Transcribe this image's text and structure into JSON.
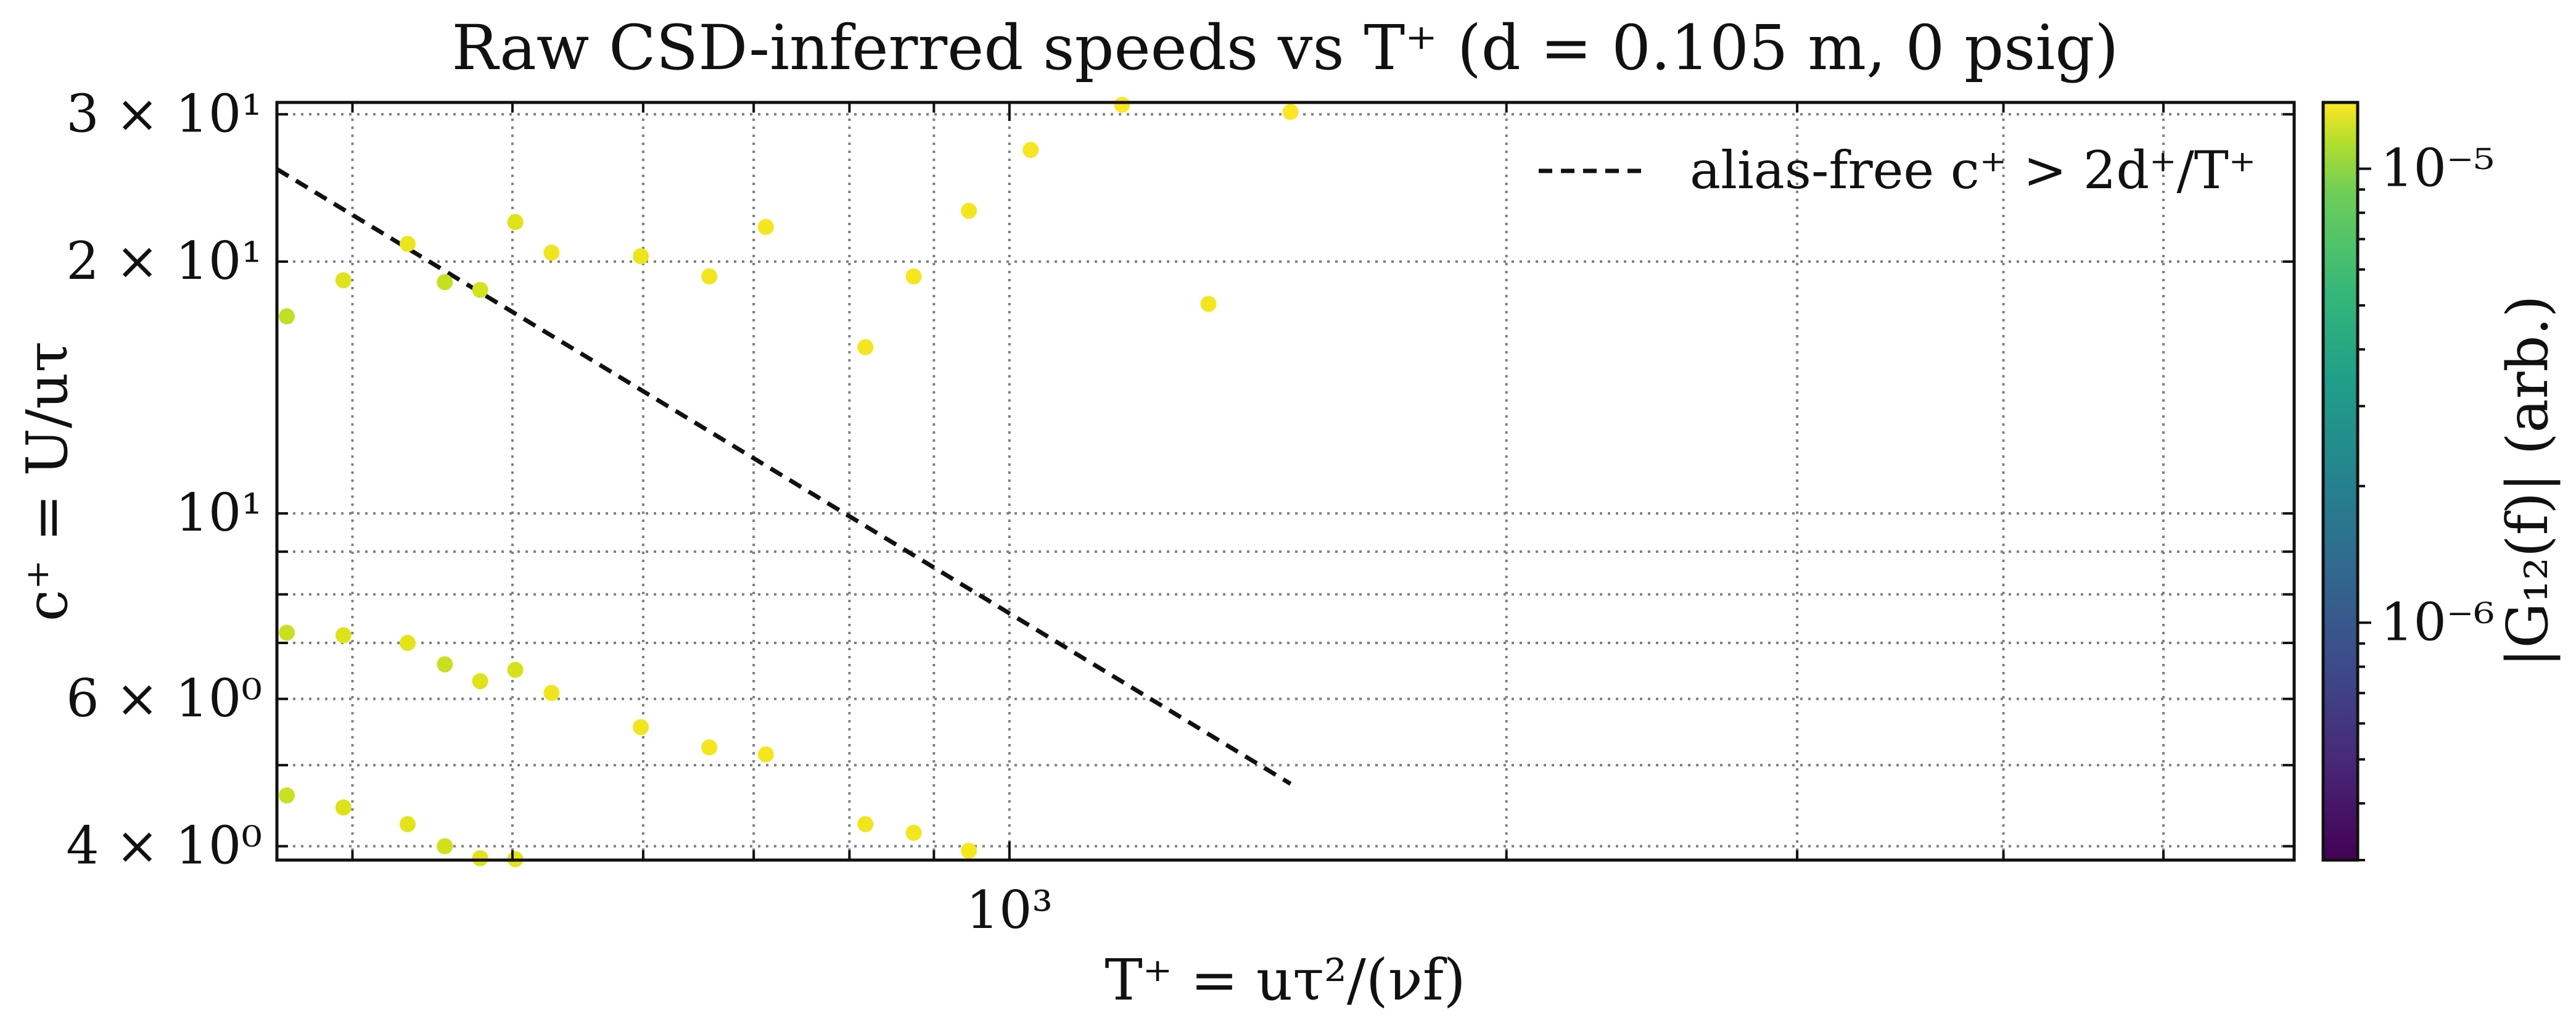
{
  "chart_data": {
    "type": "scatter",
    "title": "Raw CSD-inferred speeds vs T⁺ (d = 0.105 m, 0 psig)",
    "xlabel": "T⁺ = uτ²/(νf)",
    "ylabel": "c⁺ = U/uτ",
    "xscale": "log",
    "yscale": "log",
    "xlim": [
      360,
      6000
    ],
    "ylim": [
      3.85,
      31
    ],
    "x_tick_labels": [
      {
        "value": 1000,
        "text": "10³"
      }
    ],
    "y_tick_labels": [
      {
        "value": 4,
        "text": "4 × 10⁰"
      },
      {
        "value": 6,
        "text": "6 × 10⁰"
      },
      {
        "value": 10,
        "text": "10¹"
      },
      {
        "value": 20,
        "text": "2 × 10¹"
      },
      {
        "value": 30,
        "text": "3 × 10¹"
      }
    ],
    "grid": true,
    "legend": {
      "position": "top-right",
      "entries": [
        {
          "label": "alias-free c⁺ > 2d⁺/T⁺",
          "style": "dashed",
          "color": "#111111"
        }
      ]
    },
    "reference_line": {
      "name": "alias-free c⁺ > 2d⁺/T⁺",
      "x": [
        360,
        1480
      ],
      "y": [
        25.8,
        4.75
      ]
    },
    "colorbar": {
      "label": "|G₁₂(f)| (arb.)",
      "scale": "log",
      "range": [
        3e-07,
        1.4e-05
      ],
      "colormap": "viridis",
      "tick_labels": [
        {
          "value": 1e-05,
          "text": "10⁻⁵"
        },
        {
          "value": 1e-06,
          "text": "10⁻⁶"
        }
      ]
    },
    "points": [
      {
        "x": 365,
        "y": 17.2,
        "color": "#c2df23"
      },
      {
        "x": 395,
        "y": 19.0,
        "color": "#e0e21e"
      },
      {
        "x": 432,
        "y": 21.0,
        "color": "#ede51b"
      },
      {
        "x": 455,
        "y": 18.9,
        "color": "#c5e021"
      },
      {
        "x": 478,
        "y": 18.5,
        "color": "#d2e21b"
      },
      {
        "x": 502,
        "y": 22.3,
        "color": "#dfe318"
      },
      {
        "x": 528,
        "y": 20.5,
        "color": "#efe51c"
      },
      {
        "x": 598,
        "y": 20.3,
        "color": "#ece51b"
      },
      {
        "x": 658,
        "y": 19.2,
        "color": "#f1e51d"
      },
      {
        "x": 712,
        "y": 22.0,
        "color": "#f4e61e"
      },
      {
        "x": 818,
        "y": 15.8,
        "color": "#f3e61d"
      },
      {
        "x": 875,
        "y": 19.2,
        "color": "#f5e61e"
      },
      {
        "x": 945,
        "y": 23.0,
        "color": "#f4e61e"
      },
      {
        "x": 1030,
        "y": 27.2,
        "color": "#f5e61f"
      },
      {
        "x": 1170,
        "y": 30.8,
        "color": "#fde725"
      },
      {
        "x": 1320,
        "y": 17.8,
        "color": "#f4e61e"
      },
      {
        "x": 1480,
        "y": 30.2,
        "color": "#fbe723"
      },
      {
        "x": 365,
        "y": 7.2,
        "color": "#c8e020"
      },
      {
        "x": 395,
        "y": 7.15,
        "color": "#dde318"
      },
      {
        "x": 432,
        "y": 7.0,
        "color": "#e2e418"
      },
      {
        "x": 455,
        "y": 6.6,
        "color": "#c8e020"
      },
      {
        "x": 478,
        "y": 6.3,
        "color": "#dfe318"
      },
      {
        "x": 502,
        "y": 6.5,
        "color": "#d5e21a"
      },
      {
        "x": 528,
        "y": 6.1,
        "color": "#efe51c"
      },
      {
        "x": 598,
        "y": 5.55,
        "color": "#f1e51d"
      },
      {
        "x": 658,
        "y": 5.25,
        "color": "#f3e61d"
      },
      {
        "x": 712,
        "y": 5.15,
        "color": "#f4e61e"
      },
      {
        "x": 365,
        "y": 4.6,
        "color": "#c8e020"
      },
      {
        "x": 395,
        "y": 4.45,
        "color": "#dde318"
      },
      {
        "x": 432,
        "y": 4.25,
        "color": "#e2e418"
      },
      {
        "x": 455,
        "y": 4.0,
        "color": "#d0e11c"
      },
      {
        "x": 478,
        "y": 3.87,
        "color": "#e0e318"
      },
      {
        "x": 502,
        "y": 3.86,
        "color": "#e4e419"
      },
      {
        "x": 818,
        "y": 4.25,
        "color": "#f1e51d"
      },
      {
        "x": 875,
        "y": 4.15,
        "color": "#f3e61d"
      },
      {
        "x": 945,
        "y": 3.95,
        "color": "#f5e61e"
      }
    ]
  }
}
